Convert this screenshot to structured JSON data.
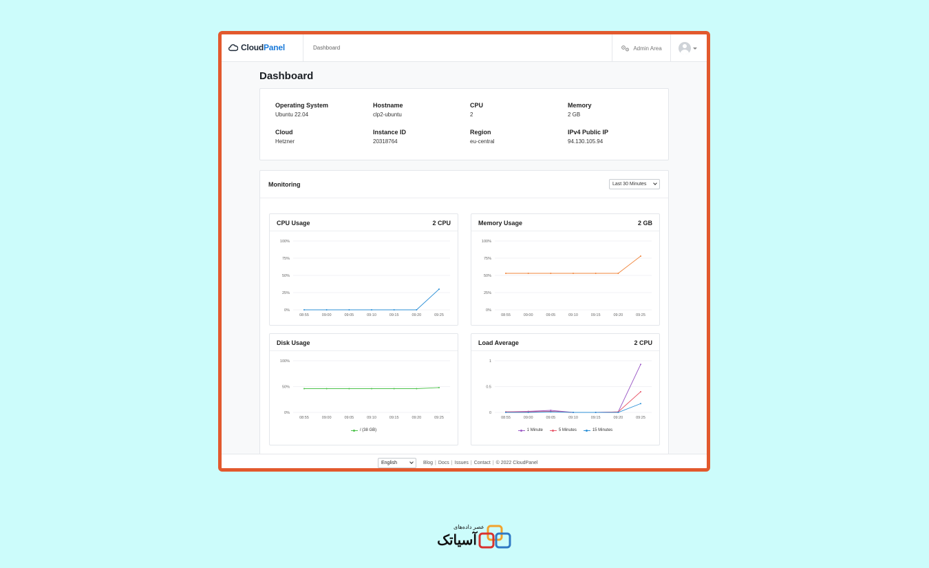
{
  "app": {
    "logo_text_1": "Cloud",
    "logo_text_2": "Panel",
    "nav_current": "Dashboard",
    "admin_label": "Admin Area",
    "accent_color": "#1a7ad9",
    "frame_border_color": "#e2592d"
  },
  "page": {
    "title": "Dashboard"
  },
  "info": [
    {
      "label": "Operating System",
      "value": "Ubuntu 22.04"
    },
    {
      "label": "Hostname",
      "value": "clp2-ubuntu"
    },
    {
      "label": "CPU",
      "value": "2"
    },
    {
      "label": "Memory",
      "value": "2 GB"
    },
    {
      "label": "Cloud",
      "value": "Hetzner"
    },
    {
      "label": "Instance ID",
      "value": "20318764"
    },
    {
      "label": "Region",
      "value": "eu-central"
    },
    {
      "label": "IPv4 Public IP",
      "value": "94.130.105.94"
    }
  ],
  "monitoring": {
    "title": "Monitoring",
    "range_selected": "Last 30 Minutes"
  },
  "chart_data": [
    {
      "type": "line",
      "title": "CPU Usage",
      "meta": "2 CPU",
      "x": [
        "08:55",
        "09:00",
        "09:05",
        "09:10",
        "09:15",
        "09:20",
        "09:25"
      ],
      "y_ticks": [
        "100%",
        "75%",
        "50%",
        "25%",
        "0%"
      ],
      "ylim": [
        0,
        100
      ],
      "series": [
        {
          "values": [
            0,
            0,
            0,
            0,
            0,
            0,
            30
          ],
          "color": "#2b8fd6"
        }
      ]
    },
    {
      "type": "line",
      "title": "Memory Usage",
      "meta": "2 GB",
      "x": [
        "08:55",
        "09:00",
        "09:05",
        "09:10",
        "09:15",
        "09:20",
        "09:25"
      ],
      "y_ticks": [
        "100%",
        "75%",
        "50%",
        "25%",
        "0%"
      ],
      "ylim": [
        0,
        100
      ],
      "series": [
        {
          "values": [
            53,
            53,
            53,
            53,
            53,
            53,
            78
          ],
          "color": "#f0843a"
        }
      ]
    },
    {
      "type": "line",
      "title": "Disk Usage",
      "meta": "",
      "x": [
        "08:55",
        "09:00",
        "09:05",
        "09:10",
        "09:15",
        "09:20",
        "09:25"
      ],
      "y_ticks": [
        "100%",
        "50%",
        "0%"
      ],
      "ylim": [
        0,
        100
      ],
      "series": [
        {
          "name": "/ (38 GB)",
          "values": [
            46,
            46,
            46,
            46,
            46,
            46,
            48
          ],
          "color": "#4cc24a"
        }
      ]
    },
    {
      "type": "line",
      "title": "Load Average",
      "meta": "2 CPU",
      "x": [
        "08:55",
        "09:00",
        "09:05",
        "09:10",
        "09:15",
        "09:20",
        "09:25"
      ],
      "y_ticks": [
        "1",
        "0.5",
        "0"
      ],
      "ylim": [
        0,
        1
      ],
      "series": [
        {
          "name": "1 Minute",
          "values": [
            0.01,
            0.02,
            0.04,
            0.0,
            0.0,
            0.01,
            0.93
          ],
          "color": "#9b59c6"
        },
        {
          "name": "5 Minutes",
          "values": [
            0.01,
            0.01,
            0.02,
            0.0,
            0.0,
            0.01,
            0.4
          ],
          "color": "#e8576a"
        },
        {
          "name": "15 Minutes",
          "values": [
            0.0,
            0.0,
            0.01,
            0.0,
            0.0,
            0.0,
            0.17
          ],
          "color": "#2b8fd6"
        }
      ]
    }
  ],
  "footer": {
    "language": "English",
    "links": [
      "Blog",
      "Docs",
      "Issues",
      "Contact"
    ],
    "copyright": "© 2022  CloudPanel"
  },
  "brand": {
    "tagline": "عصر دادەهای",
    "name": "آسیاتک"
  }
}
